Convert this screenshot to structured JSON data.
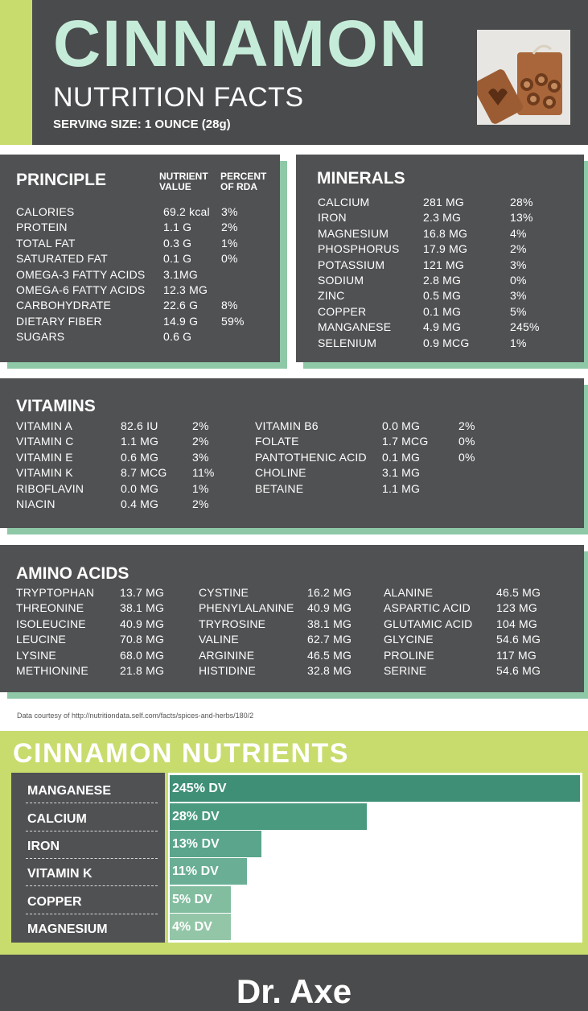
{
  "header": {
    "title": "CINNAMON",
    "subtitle": "NUTRITION FACTS",
    "serving": "SERVING SIZE: 1 OUNCE (28g)"
  },
  "principle": {
    "title": "PRINCIPLE",
    "col_value": [
      "NUTRIENT",
      "VALUE"
    ],
    "col_rda": [
      "PERCENT",
      "OF RDA"
    ],
    "rows": [
      {
        "name": "CALORIES",
        "value": "69.2 kcal",
        "rda": "3%"
      },
      {
        "name": "PROTEIN",
        "value": "1.1 G",
        "rda": "2%"
      },
      {
        "name": "TOTAL FAT",
        "value": "0.3 G",
        "rda": "1%"
      },
      {
        "name": "SATURATED FAT",
        "value": "0.1 G",
        "rda": "0%"
      },
      {
        "name": "OMEGA-3 FATTY ACIDS",
        "value": "3.1MG",
        "rda": ""
      },
      {
        "name": "OMEGA-6 FATTY ACIDS",
        "value": "12.3 MG",
        "rda": ""
      },
      {
        "name": "CARBOHYDRATE",
        "value": "22.6 G",
        "rda": "8%"
      },
      {
        "name": "DIETARY FIBER",
        "value": "14.9 G",
        "rda": "59%"
      },
      {
        "name": "SUGARS",
        "value": "0.6 G",
        "rda": ""
      }
    ]
  },
  "minerals": {
    "title": "MINERALS",
    "rows": [
      {
        "name": "CALCIUM",
        "value": "281 MG",
        "rda": "28%"
      },
      {
        "name": "IRON",
        "value": "2.3 MG",
        "rda": "13%"
      },
      {
        "name": "MAGNESIUM",
        "value": "16.8 MG",
        "rda": "4%"
      },
      {
        "name": "PHOSPHORUS",
        "value": "17.9 MG",
        "rda": "2%"
      },
      {
        "name": "POTASSIUM",
        "value": "121 MG",
        "rda": "3%"
      },
      {
        "name": "SODIUM",
        "value": "2.8 MG",
        "rda": "0%"
      },
      {
        "name": "ZINC",
        "value": "0.5 MG",
        "rda": "3%"
      },
      {
        "name": "COPPER",
        "value": "0.1 MG",
        "rda": "5%"
      },
      {
        "name": "MANGANESE",
        "value": "4.9 MG",
        "rda": "245%"
      },
      {
        "name": "SELENIUM",
        "value": "0.9 MCG",
        "rda": "1%"
      }
    ]
  },
  "vitamins": {
    "title": "VITAMINS",
    "left": [
      {
        "name": "VITAMIN A",
        "value": "82.6 IU",
        "rda": "2%"
      },
      {
        "name": "VITAMIN C",
        "value": "1.1 MG",
        "rda": "2%"
      },
      {
        "name": "VITAMIN E",
        "value": "0.6 MG",
        "rda": "3%"
      },
      {
        "name": "VITAMIN K",
        "value": "8.7 MCG",
        "rda": "11%"
      },
      {
        "name": "RIBOFLAVIN",
        "value": "0.0 MG",
        "rda": "1%"
      },
      {
        "name": "NIACIN",
        "value": "0.4 MG",
        "rda": "2%"
      }
    ],
    "right": [
      {
        "name": "VITAMIN B6",
        "value": "0.0 MG",
        "rda": "2%"
      },
      {
        "name": "FOLATE",
        "value": "1.7 MCG",
        "rda": "0%"
      },
      {
        "name": "PANTOTHENIC ACID",
        "value": "0.1 MG",
        "rda": "0%"
      },
      {
        "name": "CHOLINE",
        "value": "3.1 MG",
        "rda": ""
      },
      {
        "name": "BETAINE",
        "value": "1.1 MG",
        "rda": ""
      }
    ]
  },
  "amino": {
    "title": "AMINO ACIDS",
    "col1": [
      {
        "name": "TRYPTOPHAN",
        "value": "13.7 MG"
      },
      {
        "name": "THREONINE",
        "value": "38.1 MG"
      },
      {
        "name": "ISOLEUCINE",
        "value": "40.9 MG"
      },
      {
        "name": "LEUCINE",
        "value": "70.8 MG"
      },
      {
        "name": "LYSINE",
        "value": "68.0 MG"
      },
      {
        "name": "METHIONINE",
        "value": "21.8 MG"
      }
    ],
    "col2": [
      {
        "name": "CYSTINE",
        "value": "16.2 MG"
      },
      {
        "name": "PHENYLALANINE",
        "value": "40.9 MG"
      },
      {
        "name": "TRYROSINE",
        "value": "38.1 MG"
      },
      {
        "name": "VALINE",
        "value": "62.7 MG"
      },
      {
        "name": "ARGININE",
        "value": "46.5 MG"
      },
      {
        "name": "HISTIDINE",
        "value": "32.8 MG"
      }
    ],
    "col3": [
      {
        "name": "ALANINE",
        "value": "46.5 MG"
      },
      {
        "name": "ASPARTIC ACID",
        "value": "123 MG"
      },
      {
        "name": "GLUTAMIC ACID",
        "value": "104 MG"
      },
      {
        "name": "GLYCINE",
        "value": "54.6 MG"
      },
      {
        "name": "PROLINE",
        "value": "117 MG"
      },
      {
        "name": "SERINE",
        "value": "54.6 MG"
      }
    ]
  },
  "footnote": "Data courtesy of http://nutritiondata.self.com/facts/spices-and-herbs/180/2",
  "nutrients": {
    "title": "CINNAMON NUTRIENTS",
    "items": [
      {
        "label": "MANGANESE",
        "dv": 245,
        "text": "245% DV",
        "color": "#3f8f77"
      },
      {
        "label": "CALCIUM",
        "dv": 28,
        "text": "28% DV",
        "color": "#4a9a80"
      },
      {
        "label": "IRON",
        "dv": 13,
        "text": "13% DV",
        "color": "#5aa58b"
      },
      {
        "label": "VITAMIN K",
        "dv": 11,
        "text": "11% DV",
        "color": "#6aaf95"
      },
      {
        "label": "COPPER",
        "dv": 5,
        "text": "5% DV",
        "color": "#82bd9f"
      },
      {
        "label": "MAGNESIUM",
        "dv": 4,
        "text": "4% DV",
        "color": "#93c6a7"
      }
    ]
  },
  "brand": "Dr. Axe",
  "colors": {
    "dark_panel": "#505153",
    "lime": "#c8dc6e",
    "mint_title": "#c5ecd9",
    "shadow_green": "#8ec8a7"
  }
}
